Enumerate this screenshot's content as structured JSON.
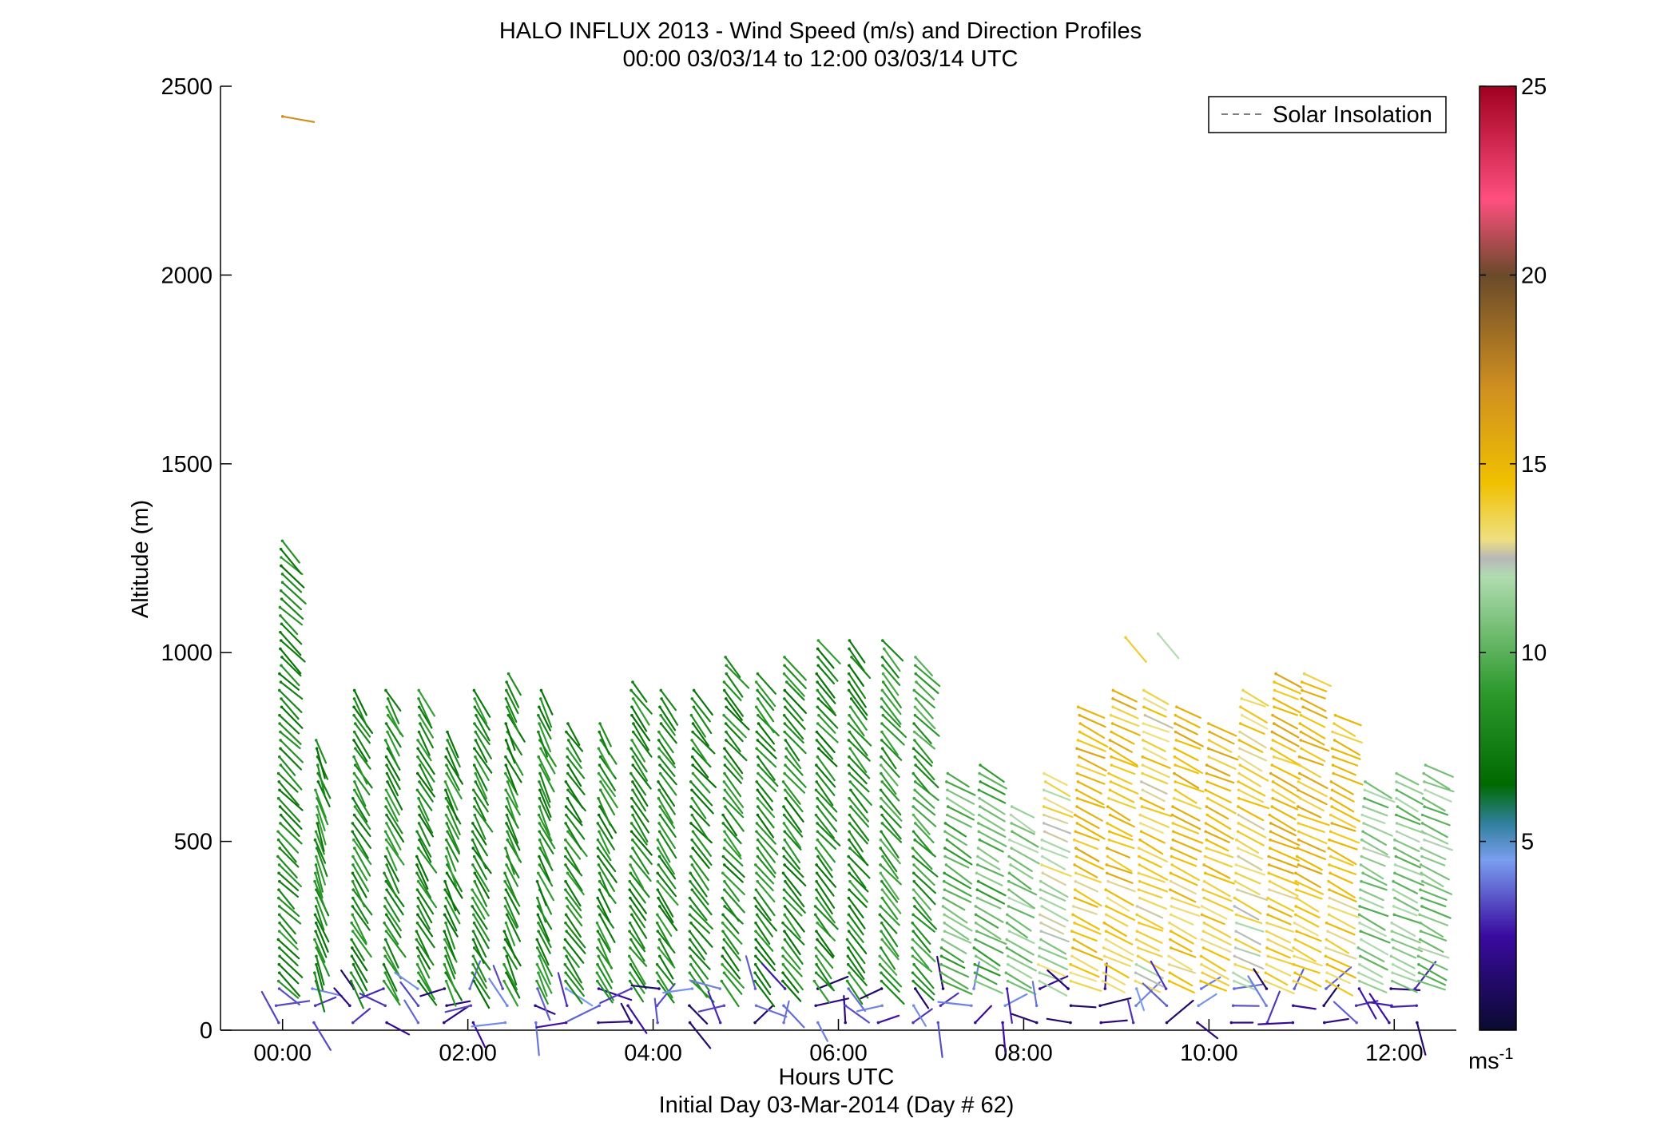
{
  "chart_data": {
    "type": "scatter",
    "title": "HALO INFLUX 2013 - Wind Speed (m/s) and Direction Profiles",
    "subtitle": "00:00 03/03/14 to 12:00 03/03/14  UTC",
    "xlabel": "Hours UTC",
    "xlabel2": "Initial Day 03-Mar-2014 (Day # 62)",
    "ylabel": "Altitude (m)",
    "xlim": [
      -0.67,
      12.67
    ],
    "ylim": [
      0,
      2500
    ],
    "x_ticks": [
      {
        "value": 0,
        "label": "00:00"
      },
      {
        "value": 2,
        "label": "02:00"
      },
      {
        "value": 4,
        "label": "04:00"
      },
      {
        "value": 6,
        "label": "06:00"
      },
      {
        "value": 8,
        "label": "08:00"
      },
      {
        "value": 10,
        "label": "10:00"
      },
      {
        "value": 12,
        "label": "12:00"
      }
    ],
    "y_ticks": [
      0,
      500,
      1000,
      1500,
      2000,
      2500
    ],
    "grid": false,
    "legend": {
      "entries": [
        "Solar Insolation"
      ],
      "position": "top-right",
      "line_color": "#808080"
    },
    "colorbar": {
      "ticks": [
        5,
        10,
        15,
        20,
        25
      ],
      "range": [
        0,
        25
      ],
      "unit_label": "ms",
      "unit_exponent": "-1",
      "stops": [
        {
          "v": 0,
          "c": "#0a0a30"
        },
        {
          "v": 2.5,
          "c": "#3a0aa0"
        },
        {
          "v": 4.5,
          "c": "#7a9ef0"
        },
        {
          "v": 5.5,
          "c": "#2f7f9a"
        },
        {
          "v": 6.5,
          "c": "#006a00"
        },
        {
          "v": 9,
          "c": "#2e9a2e"
        },
        {
          "v": 12,
          "c": "#b0dcb0"
        },
        {
          "v": 12.5,
          "c": "#b8b8b8"
        },
        {
          "v": 13,
          "c": "#efe080"
        },
        {
          "v": 14.5,
          "c": "#f0c000"
        },
        {
          "v": 17,
          "c": "#d09020"
        },
        {
          "v": 20,
          "c": "#6a4a2a"
        },
        {
          "v": 22,
          "c": "#ff4f7f"
        },
        {
          "v": 25,
          "c": "#a00020"
        }
      ]
    },
    "wind_profiles": [
      {
        "t": -0.05,
        "top": 1300,
        "dir": 315,
        "base": 8
      },
      {
        "t": 0.35,
        "top": 780,
        "dir": 340,
        "base": 8
      },
      {
        "t": 0.75,
        "top": 920,
        "dir": 330,
        "base": 8
      },
      {
        "t": 1.1,
        "top": 900,
        "dir": 330,
        "base": 8
      },
      {
        "t": 1.45,
        "top": 920,
        "dir": 330,
        "base": 8
      },
      {
        "t": 1.75,
        "top": 800,
        "dir": 335,
        "base": 8
      },
      {
        "t": 2.05,
        "top": 900,
        "dir": 330,
        "base": 8
      },
      {
        "t": 2.4,
        "top": 960,
        "dir": 335,
        "base": 8
      },
      {
        "t": 2.75,
        "top": 900,
        "dir": 335,
        "base": 8
      },
      {
        "t": 3.05,
        "top": 830,
        "dir": 325,
        "base": 8
      },
      {
        "t": 3.4,
        "top": 830,
        "dir": 330,
        "base": 8
      },
      {
        "t": 3.75,
        "top": 930,
        "dir": 325,
        "base": 8
      },
      {
        "t": 4.05,
        "top": 900,
        "dir": 325,
        "base": 8
      },
      {
        "t": 4.4,
        "top": 920,
        "dir": 320,
        "base": 8
      },
      {
        "t": 4.75,
        "top": 1000,
        "dir": 320,
        "base": 8
      },
      {
        "t": 5.1,
        "top": 960,
        "dir": 320,
        "base": 8
      },
      {
        "t": 5.4,
        "top": 1000,
        "dir": 320,
        "base": 8
      },
      {
        "t": 5.75,
        "top": 1050,
        "dir": 320,
        "base": 8
      },
      {
        "t": 6.1,
        "top": 1050,
        "dir": 320,
        "base": 8
      },
      {
        "t": 6.45,
        "top": 1050,
        "dir": 320,
        "base": 9
      },
      {
        "t": 6.8,
        "top": 1000,
        "dir": 315,
        "base": 9
      },
      {
        "t": 7.1,
        "top": 700,
        "dir": 300,
        "base": 10
      },
      {
        "t": 7.45,
        "top": 720,
        "dir": 300,
        "base": 10
      },
      {
        "t": 7.8,
        "top": 600,
        "dir": 300,
        "base": 11
      },
      {
        "t": 8.15,
        "top": 680,
        "dir": 295,
        "base": 12
      },
      {
        "t": 8.5,
        "top": 870,
        "dir": 295,
        "base": 14
      },
      {
        "t": 8.85,
        "top": 900,
        "dir": 295,
        "base": 14
      },
      {
        "t": 9.2,
        "top": 920,
        "dir": 295,
        "base": 13
      },
      {
        "t": 9.55,
        "top": 860,
        "dir": 295,
        "base": 14
      },
      {
        "t": 9.9,
        "top": 830,
        "dir": 295,
        "base": 14
      },
      {
        "t": 10.25,
        "top": 900,
        "dir": 295,
        "base": 13
      },
      {
        "t": 10.6,
        "top": 960,
        "dir": 295,
        "base": 14
      },
      {
        "t": 10.9,
        "top": 960,
        "dir": 295,
        "base": 14
      },
      {
        "t": 11.25,
        "top": 850,
        "dir": 295,
        "base": 14
      },
      {
        "t": 11.6,
        "top": 660,
        "dir": 295,
        "base": 11
      },
      {
        "t": 11.95,
        "top": 690,
        "dir": 295,
        "base": 11
      },
      {
        "t": 12.25,
        "top": 720,
        "dir": 295,
        "base": 11
      }
    ],
    "isolated_barbs": [
      {
        "t": 0.0,
        "z": 2420,
        "dir": 280,
        "speed": 17
      },
      {
        "t": 9.1,
        "z": 1040,
        "dir": 320,
        "speed": 14
      },
      {
        "t": 9.45,
        "z": 1050,
        "dir": 320,
        "speed": 12
      }
    ]
  }
}
